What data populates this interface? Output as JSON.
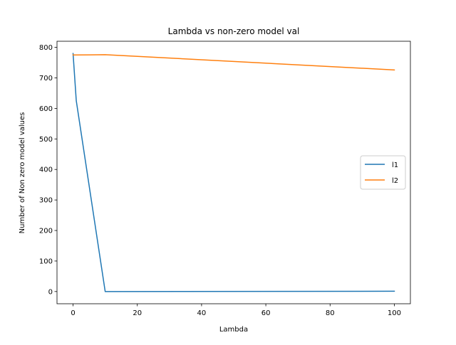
{
  "chart_data": {
    "type": "line",
    "title": "Lambda vs non-zero model val",
    "xlabel": "Lambda",
    "ylabel": "Number of Non zero model values",
    "xlim": [
      -5,
      105
    ],
    "ylim": [
      -40,
      820
    ],
    "xticks": [
      0,
      20,
      40,
      60,
      80,
      100
    ],
    "yticks": [
      0,
      100,
      200,
      300,
      400,
      500,
      600,
      700,
      800
    ],
    "grid": false,
    "legend": "center-right",
    "series": [
      {
        "name": "l1",
        "color": "#1f77b4",
        "x": [
          0,
          1,
          10,
          100
        ],
        "y": [
          780,
          625,
          0,
          1
        ]
      },
      {
        "name": "l2",
        "color": "#ff7f0e",
        "x": [
          0,
          1,
          10,
          100
        ],
        "y": [
          775,
          775,
          776,
          726
        ]
      }
    ]
  }
}
